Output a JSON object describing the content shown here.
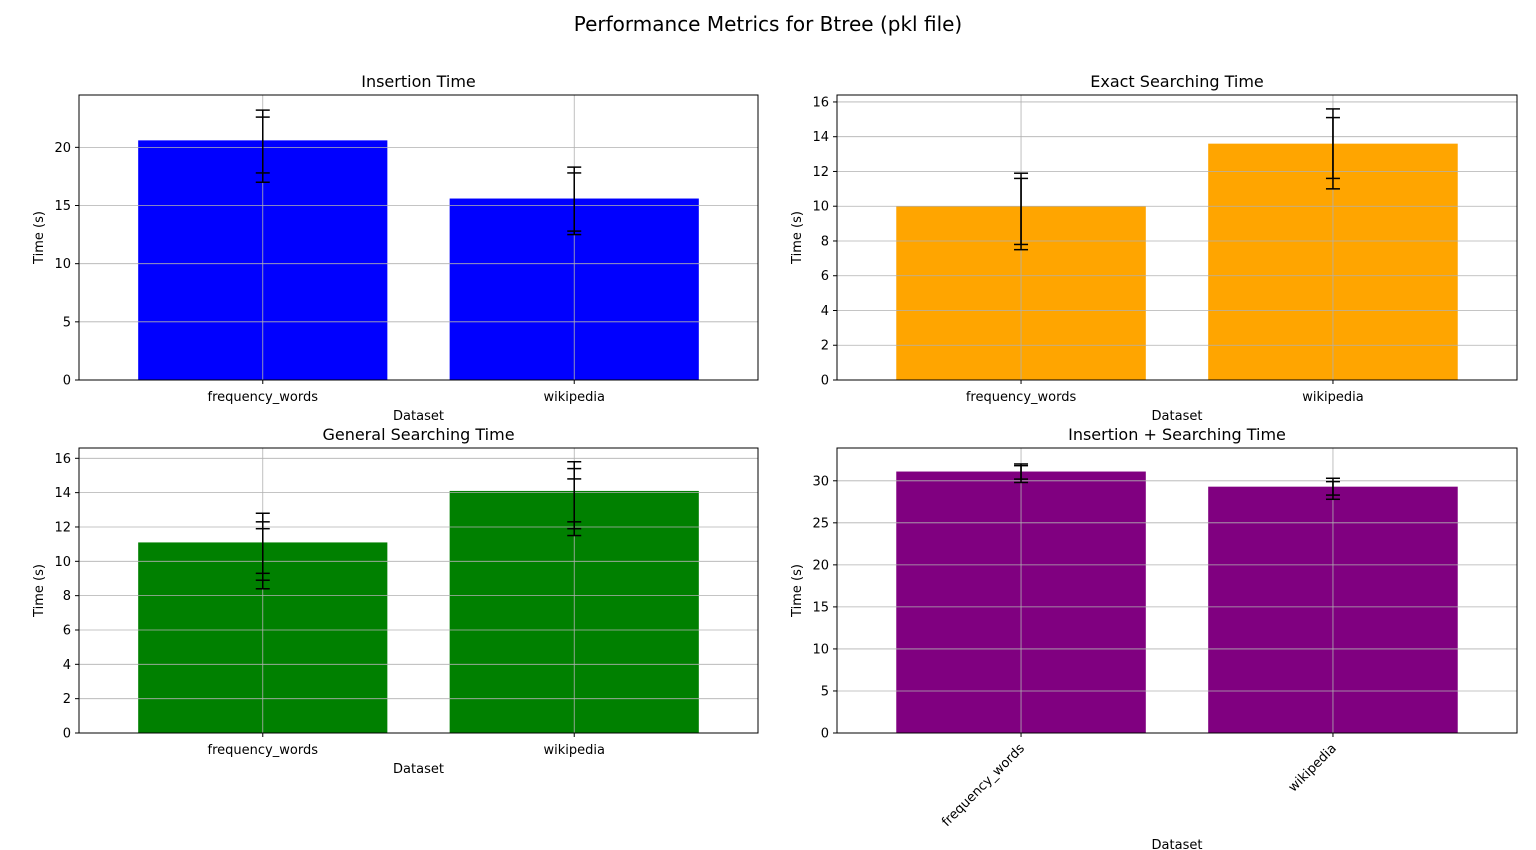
{
  "figure": {
    "title": "Performance Metrics for Btree (pkl file)"
  },
  "chart_data": [
    {
      "type": "bar",
      "title": "Insertion Time",
      "xlabel": "Dataset",
      "ylabel": "Time (s)",
      "categories": [
        "frequency_words",
        "wikipedia"
      ],
      "values": [
        20.6,
        15.6
      ],
      "error_bars": [
        [
          {
            "low": 17.8,
            "high": 23.2
          },
          {
            "low": 17.0,
            "high": 22.6
          }
        ],
        [
          {
            "low": 12.8,
            "high": 18.3
          },
          {
            "low": 12.5,
            "high": 17.8
          }
        ]
      ],
      "color": "#0000ff",
      "ylim": [
        0,
        24.5
      ],
      "yticks": [
        0,
        5,
        10,
        15,
        20
      ],
      "grid": true,
      "xtick_rotation": 0
    },
    {
      "type": "bar",
      "title": "Exact Searching Time",
      "xlabel": "Dataset",
      "ylabel": "Time (s)",
      "categories": [
        "frequency_words",
        "wikipedia"
      ],
      "values": [
        10.0,
        13.6
      ],
      "error_bars": [
        [
          {
            "low": 7.8,
            "high": 11.9
          },
          {
            "low": 7.5,
            "high": 11.6
          }
        ],
        [
          {
            "low": 11.6,
            "high": 15.6
          },
          {
            "low": 11.0,
            "high": 15.1
          }
        ]
      ],
      "color": "#ffa500",
      "ylim": [
        0,
        16.4
      ],
      "yticks": [
        0,
        2,
        4,
        6,
        8,
        10,
        12,
        14,
        16
      ],
      "grid": true,
      "xtick_rotation": 0
    },
    {
      "type": "bar",
      "title": "General Searching Time",
      "xlabel": "Dataset",
      "ylabel": "Time (s)",
      "categories": [
        "frequency_words",
        "wikipedia"
      ],
      "values": [
        11.1,
        14.1
      ],
      "error_bars": [
        [
          {
            "low": 9.3,
            "high": 12.8
          },
          {
            "low": 8.9,
            "high": 12.3
          },
          {
            "low": 8.4,
            "high": 11.9
          }
        ],
        [
          {
            "low": 12.3,
            "high": 15.8
          },
          {
            "low": 11.9,
            "high": 15.4
          },
          {
            "low": 11.5,
            "high": 14.8
          }
        ]
      ],
      "color": "#008000",
      "ylim": [
        0,
        16.6
      ],
      "yticks": [
        0,
        2,
        4,
        6,
        8,
        10,
        12,
        14,
        16
      ],
      "grid": true,
      "xtick_rotation": 0
    },
    {
      "type": "bar",
      "title": "Insertion + Searching Time",
      "xlabel": "Dataset",
      "ylabel": "Time (s)",
      "categories": [
        "frequency_words",
        "wikipedia"
      ],
      "values": [
        31.1,
        29.3
      ],
      "error_bars": [
        [
          {
            "low": 30.2,
            "high": 32.0
          },
          {
            "low": 29.8,
            "high": 31.8
          }
        ],
        [
          {
            "low": 28.3,
            "high": 30.3
          },
          {
            "low": 27.8,
            "high": 29.9
          }
        ]
      ],
      "color": "#800080",
      "ylim": [
        0,
        33.9
      ],
      "yticks": [
        0,
        5,
        10,
        15,
        20,
        25,
        30
      ],
      "grid": true,
      "xtick_rotation": -45
    }
  ]
}
